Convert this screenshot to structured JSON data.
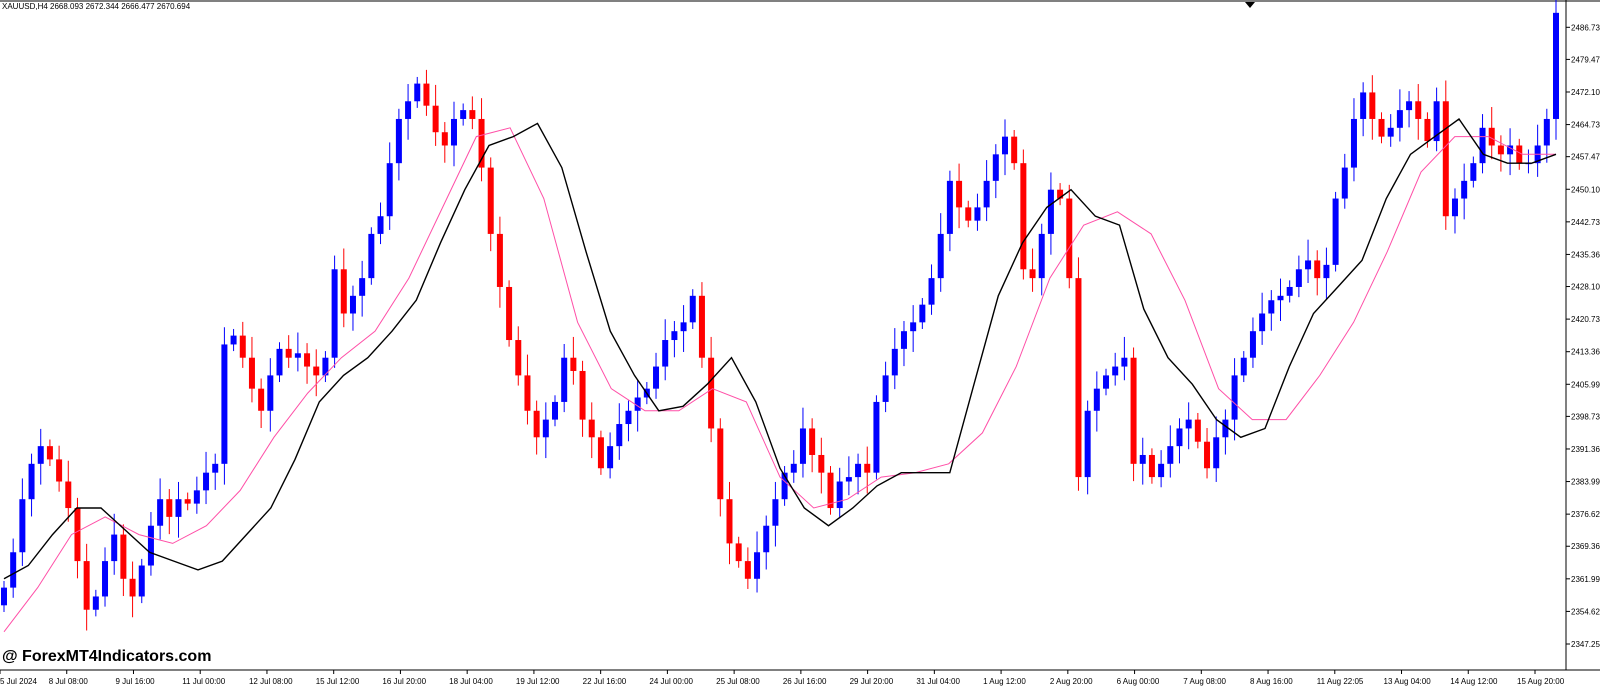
{
  "header": {
    "symbol_line": "XAUUSD,H4  2668.093 2672.344 2666.477 2670.694"
  },
  "watermark": {
    "text": "@ ForexMT4Indicators.com"
  },
  "colors": {
    "bull": "#0000ff",
    "bear": "#ff0000",
    "ma_fast": "#000000",
    "ma_slow": "#ff4fa7",
    "background": "#ffffff"
  },
  "chart_data": {
    "type": "candlestick",
    "symbol": "XAUUSD",
    "timeframe": "H4",
    "ylim": [
      2342.5,
      2492.0
    ],
    "y_ticks": [
      "2486.730",
      "2479.470",
      "2472.100",
      "2464.730",
      "2457.470",
      "2450.100",
      "2442.730",
      "2435.360",
      "2428.100",
      "2420.730",
      "2413.360",
      "2405.990",
      "2398.730",
      "2391.360",
      "2383.990",
      "2376.620",
      "2369.360",
      "2361.990",
      "2354.620",
      "2347.250"
    ],
    "x_ticks": [
      "5 Jul 2024",
      "8 Jul 08:00",
      "9 Jul 16:00",
      "11 Jul 00:00",
      "12 Jul 08:00",
      "15 Jul 12:00",
      "16 Jul 20:00",
      "18 Jul 04:00",
      "19 Jul 12:00",
      "22 Jul 16:00",
      "24 Jul 00:00",
      "25 Jul 08:00",
      "26 Jul 16:00",
      "29 Jul 20:00",
      "31 Jul 04:00",
      "1 Aug 12:00",
      "2 Aug 20:00",
      "6 Aug 00:00",
      "7 Aug 08:00",
      "8 Aug 16:00",
      "11 Aug 22:05",
      "13 Aug 04:00",
      "14 Aug 12:00",
      "15 Aug 20:00"
    ],
    "close_path": [
      2360,
      2368,
      2380,
      2388,
      2392,
      2389,
      2384,
      2378,
      2366,
      2355,
      2358,
      2366,
      2372,
      2362,
      2358,
      2365,
      2374,
      2380,
      2376,
      2380,
      2379,
      2382,
      2386,
      2388,
      2415,
      2417,
      2412,
      2405,
      2400,
      2408,
      2414,
      2412,
      2413,
      2410,
      2408,
      2412,
      2432,
      2422,
      2426,
      2430,
      2440,
      2444,
      2456,
      2466,
      2470,
      2474,
      2469,
      2463,
      2460,
      2466,
      2468,
      2466,
      2455,
      2440,
      2428,
      2416,
      2408,
      2400,
      2394,
      2398,
      2402,
      2412,
      2409,
      2398,
      2394,
      2387,
      2392,
      2397,
      2400,
      2403,
      2405,
      2410,
      2416,
      2418,
      2420,
      2426,
      2412,
      2396,
      2380,
      2370,
      2366,
      2362,
      2368,
      2374,
      2380,
      2386,
      2388,
      2396,
      2390,
      2386,
      2378,
      2384,
      2385,
      2388,
      2386,
      2402,
      2408,
      2414,
      2418,
      2420,
      2424,
      2430,
      2440,
      2452,
      2446,
      2443,
      2446,
      2452,
      2458,
      2462,
      2456,
      2432,
      2430,
      2440,
      2450,
      2448,
      2430,
      2385,
      2400,
      2405,
      2408,
      2410,
      2412,
      2388,
      2390,
      2385,
      2388,
      2392,
      2396,
      2398,
      2393,
      2387,
      2394,
      2398,
      2408,
      2412,
      2418,
      2422,
      2425,
      2426,
      2428,
      2432,
      2434,
      2430,
      2433,
      2448,
      2455,
      2466,
      2472,
      2466,
      2462,
      2464,
      2468,
      2470,
      2466,
      2461,
      2470,
      2444,
      2448,
      2452,
      2456,
      2464,
      2460,
      2458,
      2460,
      2456,
      2456,
      2460,
      2466,
      2490
    ],
    "ma_fast": [
      2362,
      2365,
      2372,
      2378,
      2378,
      2373,
      2368,
      2366,
      2364,
      2366,
      2372,
      2378,
      2389,
      2402,
      2408,
      2412,
      2418,
      2425,
      2438,
      2450,
      2460,
      2462,
      2465,
      2455,
      2436,
      2418,
      2408,
      2400,
      2401,
      2406,
      2412,
      2402,
      2387,
      2378,
      2374,
      2378,
      2383,
      2386,
      2386,
      2386,
      2406,
      2426,
      2438,
      2446,
      2450,
      2444,
      2442,
      2423,
      2412,
      2406,
      2398,
      2394,
      2396,
      2410,
      2422,
      2428,
      2434,
      2448,
      2458,
      2462,
      2466,
      2458,
      2456,
      2456,
      2458
    ],
    "ma_slow": [
      2350,
      2360,
      2372,
      2376,
      2372,
      2370,
      2374,
      2382,
      2394,
      2404,
      2412,
      2418,
      2430,
      2446,
      2462,
      2464,
      2448,
      2420,
      2405,
      2400,
      2400,
      2405,
      2402,
      2385,
      2378,
      2380,
      2385,
      2386,
      2388,
      2395,
      2410,
      2430,
      2442,
      2445,
      2440,
      2425,
      2405,
      2398,
      2398,
      2408,
      2420,
      2436,
      2454,
      2462,
      2462,
      2458,
      2458
    ]
  }
}
